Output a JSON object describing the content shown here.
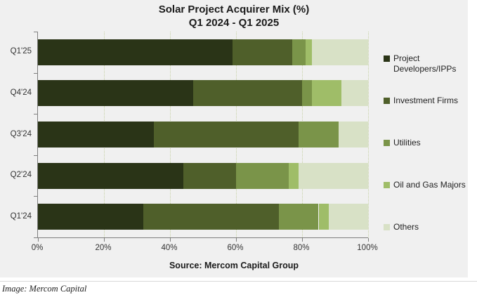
{
  "title": {
    "line1": "Solar Project Acquirer Mix (%)",
    "line2": "Q1 2024 - Q1 2025"
  },
  "source": "Source: Mercom Capital Group",
  "caption": "Image: Mercom Capital",
  "colors": {
    "chart_background": "#f0f0f0",
    "page_background": "#ffffff",
    "axis": "#7f7f7f",
    "gridline": "#c7d1a6"
  },
  "chart_data": {
    "type": "bar",
    "orientation": "horizontal",
    "stacked": true,
    "title": "Solar Project Acquirer Mix (%) Q1 2024 - Q1 2025",
    "categories": [
      "Q1'25",
      "Q4'24",
      "Q3'24",
      "Q2'24",
      "Q1'24"
    ],
    "series": [
      {
        "name": "Project Developers/IPPs",
        "color": "#2a3417",
        "values": [
          59,
          47,
          35,
          44,
          32
        ]
      },
      {
        "name": "Investment Firms",
        "color": "#4f5f2a",
        "values": [
          18,
          33,
          44,
          16,
          41
        ]
      },
      {
        "name": "Utilities",
        "color": "#7a9449",
        "values": [
          4,
          3,
          12,
          16,
          12
        ]
      },
      {
        "name": "Oil and Gas Majors",
        "color": "#9fbd68",
        "values": [
          2,
          9,
          0,
          3,
          3
        ]
      },
      {
        "name": "Others",
        "color": "#d8e1c6",
        "values": [
          17,
          8,
          9,
          21,
          12
        ]
      }
    ],
    "x_ticks": [
      "0%",
      "20%",
      "40%",
      "60%",
      "80%",
      "100%"
    ],
    "xlim": [
      0,
      100
    ],
    "grid": "vertical-dotted",
    "legend_position": "right"
  }
}
